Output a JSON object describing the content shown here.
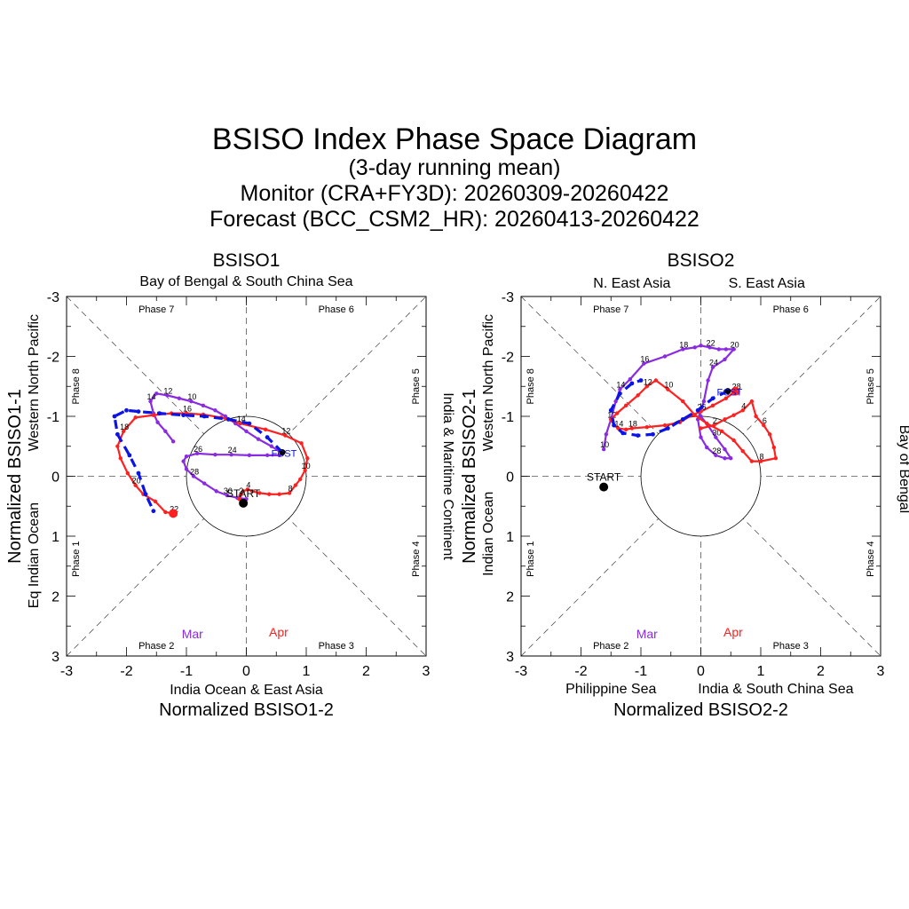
{
  "header": {
    "title": "BSISO Index Phase Space Diagram",
    "subtitle": "(3-day running mean)",
    "monitor": "Monitor (CRA+FY3D): 20260309-20260422",
    "forecast": "Forecast (BCC_CSM2_HR): 20260413-20260422"
  },
  "colors": {
    "march": "#8a2be2",
    "april": "#ff2020",
    "forecast": "#0a14e6"
  },
  "chart_data": [
    {
      "type": "line",
      "title": "BSISO1",
      "xlabel": "Normalized BSISO1-2",
      "ylabel": "Normalized BSISO1-1",
      "xlim": [
        -3,
        3
      ],
      "ylim": [
        3,
        -3
      ],
      "ticks": [
        "-3",
        "-2",
        "-1",
        "0",
        "1",
        "2",
        "3"
      ],
      "top_region": "Bay of Bengal & South China Sea",
      "bottom_region": "India Ocean & East Asia",
      "left_region_outer": "Eq Indian Ocean",
      "left_region_inner": "Western North Pacific",
      "right_region": "India & Maritime Continent",
      "phase_labels": [
        "Phase 1",
        "Phase 2",
        "Phase 3",
        "Phase 4",
        "Phase 5",
        "Phase 6",
        "Phase 7",
        "Phase 8"
      ],
      "month_labels": [
        "Mar",
        "Apr"
      ],
      "start_label": "START",
      "fcst_label": "FCST",
      "start_point": [
        -0.05,
        0.45
      ],
      "series": [
        {
          "name": "Mar",
          "label_step": 2,
          "first_day": 10,
          "x": [
            -1.22,
            -1.35,
            -1.48,
            -1.55,
            -1.6,
            -1.5,
            -1.32,
            -1.12,
            -0.92,
            -0.72,
            -0.52,
            -0.35,
            -0.18,
            0.0,
            0.2,
            0.42,
            0.6,
            0.55,
            0.35,
            0.05,
            -0.25,
            -0.52,
            -0.82,
            -1.0,
            -1.05,
            -1.0,
            -0.88,
            -0.7,
            -0.5,
            -0.32,
            -0.15,
            0.0
          ],
          "y": [
            -0.58,
            -0.75,
            -0.9,
            -1.05,
            -1.25,
            -1.38,
            -1.35,
            -1.3,
            -1.25,
            -1.18,
            -1.1,
            -1.0,
            -0.88,
            -0.75,
            -0.62,
            -0.5,
            -0.38,
            -0.35,
            -0.35,
            -0.35,
            -0.36,
            -0.36,
            -0.38,
            -0.33,
            -0.25,
            -0.12,
            0.0,
            0.12,
            0.25,
            0.32,
            0.36,
            0.38
          ],
          "labels": [
            "",
            "",
            "",
            "",
            "14",
            "",
            "12",
            "",
            "10",
            "",
            "",
            "",
            "",
            "",
            "",
            "",
            "",
            "",
            "",
            "",
            "24",
            "",
            "26",
            "",
            "",
            "",
            "28",
            "",
            "",
            "30",
            "",
            ""
          ]
        },
        {
          "name": "Apr",
          "label_step": 2,
          "first_day": 1,
          "x": [
            -0.12,
            -0.1,
            -0.05,
            0.02,
            0.1,
            0.22,
            0.38,
            0.55,
            0.72,
            0.82,
            0.9,
            0.98,
            1.02,
            0.92,
            0.65,
            0.32,
            -0.1,
            -0.42,
            -0.72,
            -1.0,
            -1.25,
            -1.55,
            -1.85,
            -2.05,
            -2.15,
            -2.1,
            -1.98,
            -1.85,
            -1.72,
            -1.52,
            -1.35,
            -1.22
          ],
          "y": [
            0.38,
            0.32,
            0.25,
            0.22,
            0.25,
            0.28,
            0.3,
            0.3,
            0.28,
            0.15,
            0.05,
            -0.1,
            -0.3,
            -0.55,
            -0.68,
            -0.78,
            -0.88,
            -0.98,
            -1.03,
            -1.05,
            -1.05,
            -1.02,
            -0.98,
            -0.75,
            -0.5,
            -0.3,
            -0.05,
            0.15,
            0.3,
            0.42,
            0.6,
            0.62
          ],
          "labels": [
            "",
            "2",
            "",
            "4",
            "",
            "",
            "",
            "",
            "8",
            "",
            "",
            "10",
            "",
            "",
            "12",
            "",
            "14",
            "",
            "",
            "16",
            "",
            "",
            "",
            "18",
            "",
            "",
            "",
            "20",
            "",
            "",
            "",
            "22"
          ]
        },
        {
          "name": "Forecast",
          "label_step": 0,
          "x": [
            0.6,
            0.35,
            0.05,
            -0.3,
            -0.7,
            -1.05,
            -1.45,
            -1.8,
            -2.0,
            -2.2,
            -2.15,
            -1.95,
            -1.8,
            -1.68,
            -1.55
          ],
          "y": [
            -0.4,
            -0.65,
            -0.88,
            -0.95,
            -1.0,
            -1.02,
            -1.05,
            -1.08,
            -1.1,
            -1.0,
            -0.7,
            -0.35,
            -0.05,
            0.3,
            0.58
          ],
          "labels": []
        }
      ]
    },
    {
      "type": "line",
      "title": "BSISO2",
      "xlabel": "Normalized BSISO2-2",
      "ylabel": "Normalized BSISO2-1",
      "xlim": [
        -3,
        3
      ],
      "ylim": [
        3,
        -3
      ],
      "ticks": [
        "-3",
        "-2",
        "-1",
        "0",
        "1",
        "2",
        "3"
      ],
      "top_left_region": "N. East Asia",
      "top_right_region": "S. East Asia",
      "bottom_left_region": "Philippine Sea",
      "bottom_right_region": "India & South China Sea",
      "left_region_outer": "Indian Ocean",
      "left_region_inner": "Western North Pacific",
      "right_region": "Bay of Bengal",
      "phase_labels": [
        "Phase 1",
        "Phase 2",
        "Phase 3",
        "Phase 4",
        "Phase 5",
        "Phase 6",
        "Phase 7",
        "Phase 8"
      ],
      "month_labels": [
        "Mar",
        "Apr"
      ],
      "start_label": "START",
      "fcst_label": "FCST",
      "start_point": [
        -1.62,
        0.18
      ],
      "series": [
        {
          "name": "Mar",
          "label_step": 2,
          "first_day": 10,
          "x": [
            -1.62,
            -1.58,
            -1.5,
            -1.42,
            -1.35,
            -1.18,
            -0.95,
            -0.6,
            -0.3,
            -0.1,
            0.0,
            0.15,
            0.3,
            0.42,
            0.55,
            0.55,
            0.4,
            0.2,
            0.12,
            0.05,
            -0.05,
            0.0,
            0.1,
            0.25,
            0.4,
            0.5,
            0.4,
            0.25,
            0.12,
            0.0
          ],
          "y": [
            -0.45,
            -0.7,
            -0.95,
            -1.25,
            -1.45,
            -1.62,
            -1.88,
            -2.0,
            -2.12,
            -2.15,
            -2.18,
            -2.15,
            -2.12,
            -2.12,
            -2.12,
            -2.12,
            -1.95,
            -1.82,
            -1.6,
            -1.25,
            -0.95,
            -0.65,
            -0.48,
            -0.35,
            -0.3,
            -0.3,
            -0.45,
            -0.65,
            -0.85,
            -1.0
          ],
          "labels": [
            "10",
            "",
            "12",
            "",
            "14",
            "",
            "16",
            "",
            "18",
            "",
            "",
            "22",
            "",
            "",
            "",
            "20",
            "",
            "24",
            "",
            "",
            "",
            "",
            "",
            "28",
            "",
            "",
            "",
            "30",
            "",
            ""
          ]
        },
        {
          "name": "Apr",
          "label_step": 2,
          "first_day": 1,
          "x": [
            0.0,
            0.22,
            0.4,
            0.55,
            0.7,
            0.85,
            0.92,
            1.05,
            1.15,
            1.22,
            1.25,
            1.0,
            0.85,
            0.7,
            0.55,
            0.35,
            0.1,
            -0.1,
            -0.3,
            -0.55,
            -0.75,
            -0.9,
            -1.05,
            -1.25,
            -1.4,
            -1.5,
            -1.45,
            -1.38,
            -1.25,
            -1.15,
            -0.9,
            -0.6,
            -0.35,
            -0.15,
            0.0,
            0.2,
            0.42,
            0.58
          ],
          "y": [
            -0.8,
            -0.85,
            -0.95,
            -1.02,
            -1.1,
            -1.25,
            -1.0,
            -0.85,
            -0.7,
            -0.48,
            -0.3,
            -0.25,
            -0.25,
            -0.42,
            -0.6,
            -0.75,
            -0.88,
            -1.02,
            -1.25,
            -1.45,
            -1.6,
            -1.5,
            -1.35,
            -1.18,
            -1.05,
            -0.95,
            -0.85,
            -0.8,
            -0.78,
            -0.8,
            -0.82,
            -0.85,
            -0.9,
            -1.02,
            -1.08,
            -1.18,
            -1.3,
            -1.42
          ],
          "labels": [
            "",
            "2",
            "",
            "",
            "4",
            "",
            "",
            "6",
            "",
            "",
            "",
            "8",
            "",
            "",
            "",
            "",
            "",
            "",
            "",
            "10",
            "",
            "12",
            "",
            "",
            "",
            "",
            "",
            "14",
            "",
            "18",
            "",
            "",
            "",
            "",
            "26",
            "",
            "",
            "28"
          ]
        },
        {
          "name": "Forecast",
          "label_step": 0,
          "x": [
            0.45,
            0.2,
            -0.05,
            -0.3,
            -0.55,
            -0.8,
            -1.05,
            -1.3,
            -1.45,
            -1.5,
            -1.35,
            -1.15,
            -1.0
          ],
          "y": [
            -1.42,
            -1.3,
            -1.1,
            -0.95,
            -0.8,
            -0.7,
            -0.68,
            -0.72,
            -0.85,
            -1.1,
            -1.38,
            -1.55,
            -1.6
          ],
          "labels": []
        }
      ]
    }
  ]
}
